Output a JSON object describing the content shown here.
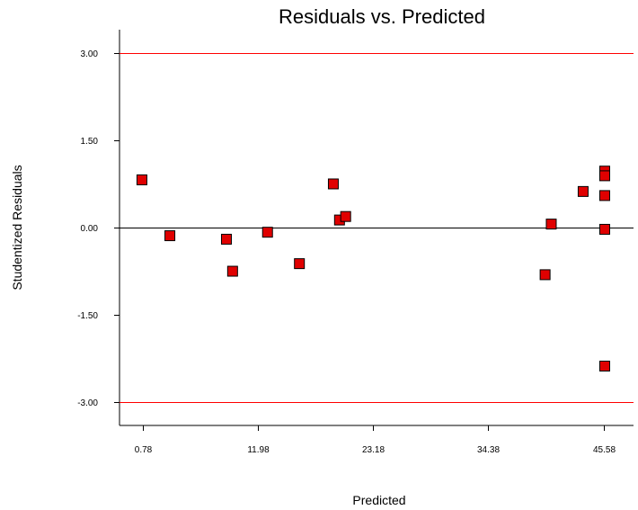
{
  "chart_data": {
    "type": "scatter",
    "title": "Residuals vs. Predicted",
    "xlabel": "Predicted",
    "ylabel": "Studentized Residuals",
    "xlim": [
      -1.5,
      48.5
    ],
    "ylim": [
      -3.4,
      3.4
    ],
    "x_ticks": [
      0.78,
      11.98,
      23.18,
      34.38,
      45.58
    ],
    "x_tick_labels": [
      "0.78",
      "11.98",
      "23.18",
      "34.38",
      "45.58"
    ],
    "y_ticks": [
      3.0,
      1.5,
      0.0,
      -1.5,
      -3.0
    ],
    "y_tick_labels": [
      "3.00",
      "1.50",
      "0.00",
      "-1.50",
      "-3.00"
    ],
    "reference_lines": [
      {
        "y": 3.0,
        "color": "#ff0000"
      },
      {
        "y": -3.0,
        "color": "#ff0000"
      },
      {
        "y": 0.0,
        "color": "#000000"
      }
    ],
    "marker_color": "#e00000",
    "grid": false,
    "points": [
      {
        "x": 0.68,
        "y": 0.82
      },
      {
        "x": 3.4,
        "y": -0.14
      },
      {
        "x": 8.9,
        "y": -0.2
      },
      {
        "x": 9.5,
        "y": -0.75
      },
      {
        "x": 12.9,
        "y": -0.08
      },
      {
        "x": 16.0,
        "y": -0.62
      },
      {
        "x": 19.3,
        "y": 0.75
      },
      {
        "x": 19.9,
        "y": 0.13
      },
      {
        "x": 20.5,
        "y": 0.19
      },
      {
        "x": 39.9,
        "y": -0.81
      },
      {
        "x": 40.5,
        "y": 0.06
      },
      {
        "x": 43.6,
        "y": 0.62
      },
      {
        "x": 45.7,
        "y": 0.97
      },
      {
        "x": 45.7,
        "y": 0.89
      },
      {
        "x": 45.7,
        "y": 0.55
      },
      {
        "x": 45.7,
        "y": -0.03
      },
      {
        "x": 45.7,
        "y": -2.38
      }
    ]
  }
}
